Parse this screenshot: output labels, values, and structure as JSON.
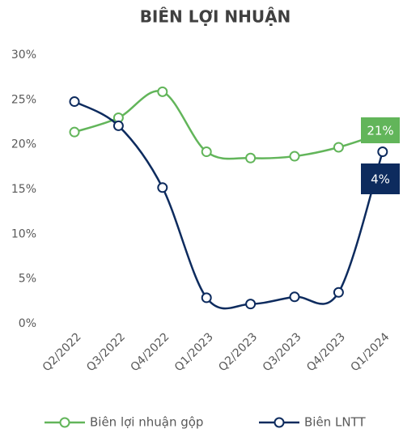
{
  "chart_data": {
    "type": "line",
    "title": "BIÊN LỢI NHUẬN",
    "categories": [
      "Q2/2022",
      "Q3/2022",
      "Q4/2022",
      "Q1/2023",
      "Q2/2023",
      "Q3/2023",
      "Q4/2023",
      "Q1/2024"
    ],
    "series": [
      {
        "name": "Biên lợi nhuận gộp",
        "color": "#62b55a",
        "values": [
          21.4,
          23.0,
          25.9,
          19.2,
          18.5,
          18.7,
          19.7,
          21.3
        ]
      },
      {
        "name": "Biên LNTT",
        "color": "#0d2b5e",
        "values": [
          24.8,
          22.1,
          15.2,
          2.9,
          2.2,
          3.0,
          3.5,
          19.2
        ]
      }
    ],
    "annotations": [
      {
        "text": "21%",
        "color": "#62b55a"
      },
      {
        "text": "4%",
        "color": "#0d2b5e"
      }
    ],
    "ylim": [
      0,
      30
    ],
    "yticks": [
      {
        "value": 0,
        "label": "0%"
      },
      {
        "value": 5,
        "label": "5%"
      },
      {
        "value": 10,
        "label": "10%"
      },
      {
        "value": 15,
        "label": "15%"
      },
      {
        "value": 20,
        "label": "20%"
      },
      {
        "value": 25,
        "label": "25%"
      },
      {
        "value": 30,
        "label": "30%"
      }
    ],
    "grid": false,
    "legend": "bottom",
    "smooth": true
  }
}
